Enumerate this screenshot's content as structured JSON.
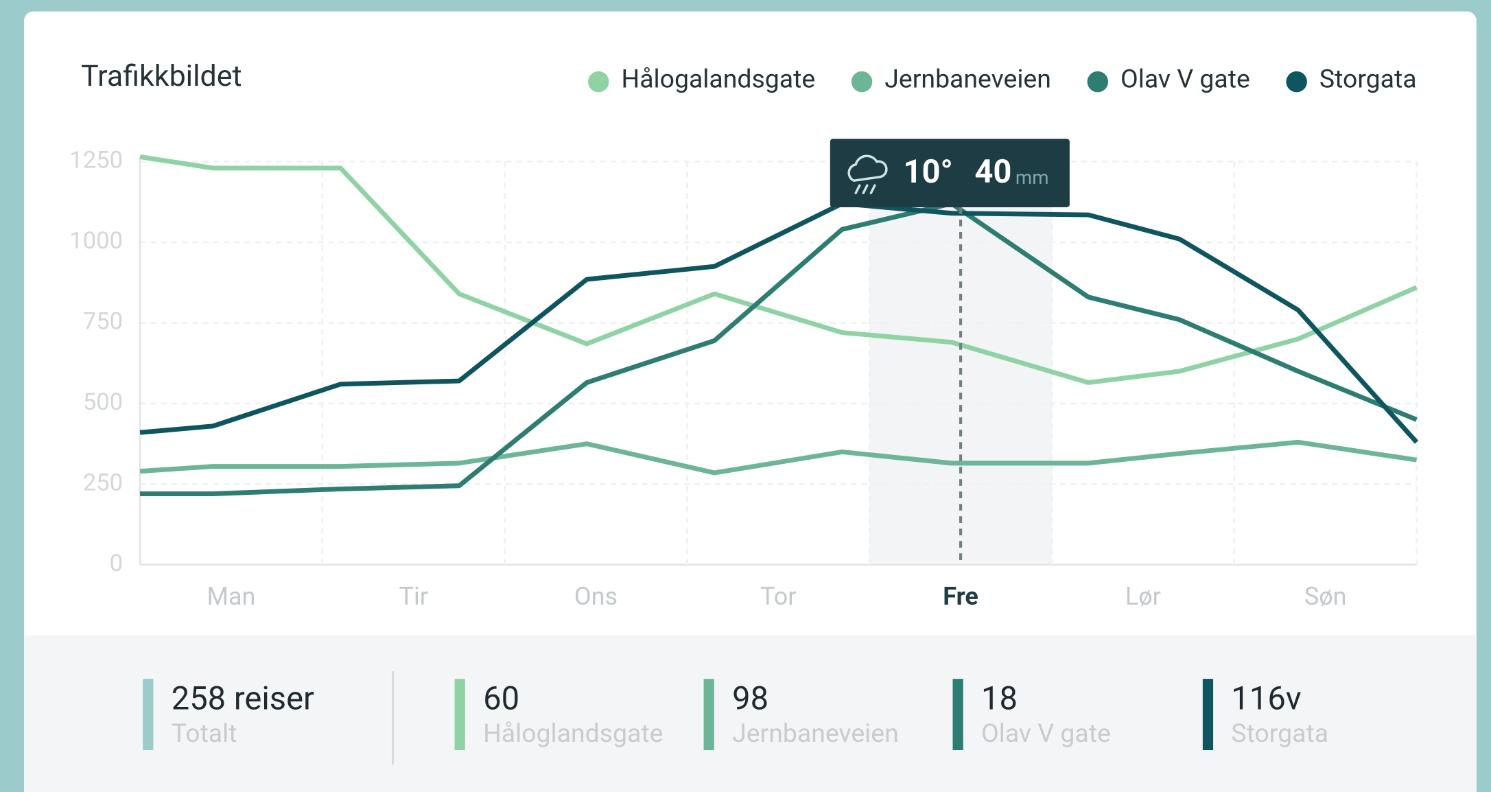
{
  "chart_data": {
    "type": "line",
    "title": "Trafikkbildet",
    "x": [
      0,
      0.8,
      2.2,
      3.5,
      4.9,
      6.3,
      7.7,
      8.9,
      10.4,
      11.4,
      12.7,
      14
    ],
    "xlim": [
      0,
      14
    ],
    "xticks": [
      {
        "value": 1,
        "label": "Man"
      },
      {
        "value": 3,
        "label": "Tir"
      },
      {
        "value": 5,
        "label": "Ons"
      },
      {
        "value": 7,
        "label": "Tor"
      },
      {
        "value": 9,
        "label": "Fre"
      },
      {
        "value": 11,
        "label": "Lør"
      },
      {
        "value": 13,
        "label": "Søn"
      }
    ],
    "ylim": [
      0,
      1250
    ],
    "yticks": [
      0,
      250,
      500,
      750,
      1000,
      1250
    ],
    "grid": true,
    "series": [
      {
        "name": "Hålogalandsgate",
        "color": "#8fd3a5",
        "values": [
          1265,
          1230,
          1230,
          840,
          685,
          840,
          720,
          690,
          565,
          600,
          700,
          860
        ]
      },
      {
        "name": "Jernbaneveien",
        "color": "#6db597",
        "values": [
          290,
          305,
          305,
          315,
          375,
          285,
          350,
          315,
          315,
          345,
          380,
          325
        ]
      },
      {
        "name": "Olav V gate",
        "color": "#2e7d72",
        "values": [
          220,
          220,
          235,
          245,
          565,
          695,
          1040,
          1120,
          830,
          760,
          600,
          450
        ]
      },
      {
        "name": "Storgata",
        "color": "#0f5560",
        "values": [
          410,
          430,
          560,
          570,
          885,
          925,
          1120,
          1090,
          1085,
          1010,
          790,
          380
        ]
      }
    ],
    "tooltip": {
      "temperature": "10°",
      "rain": "40",
      "unit": "mm"
    }
  },
  "summary": [
    {
      "value": "258 reiser",
      "label": "Totalt",
      "color": "#9ccbcb"
    },
    {
      "value": "60",
      "label": "Håloglandsgate",
      "color": "#8fd3a5"
    },
    {
      "value": "98",
      "label": "Jernbaneveien",
      "color": "#6db597"
    },
    {
      "value": "18",
      "label": "Olav V gate",
      "color": "#2e7d72"
    },
    {
      "value": "116v",
      "label": "Storgata",
      "color": "#0f5560"
    }
  ]
}
